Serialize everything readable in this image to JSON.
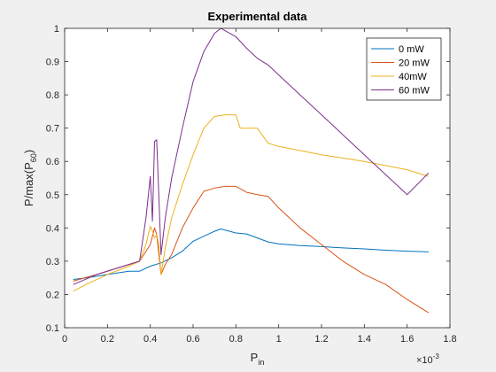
{
  "chart_data": {
    "type": "line",
    "title": "Experimental data",
    "xlabel": "P",
    "xlabel_sub": "in",
    "x_exponent_base": "×10",
    "x_exponent_power": "-3",
    "ylabel": "P/max(P",
    "ylabel_sub": "60",
    "ylabel_tail": ")",
    "xlim": [
      0,
      1.8
    ],
    "ylim": [
      0.1,
      1.0
    ],
    "x_ticks": [
      0,
      0.2,
      0.4,
      0.6,
      0.8,
      1,
      1.2,
      1.4,
      1.6,
      1.8
    ],
    "x_tick_labels": [
      "0",
      "0.2",
      "0.4",
      "0.6",
      "0.8",
      "1",
      "1.2",
      "1.4",
      "1.6",
      "1.8"
    ],
    "y_ticks": [
      0.1,
      0.2,
      0.3,
      0.4,
      0.5,
      0.6,
      0.7,
      0.8,
      0.9,
      1.0
    ],
    "y_tick_labels": [
      "0.1",
      "0.2",
      "0.3",
      "0.4",
      "0.5",
      "0.6",
      "0.7",
      "0.8",
      "0.9",
      "1"
    ],
    "grid": false,
    "legend_position": "top-right",
    "series": [
      {
        "name": "0 mW",
        "color": "#0072BD",
        "points": [
          [
            0.04,
            0.245
          ],
          [
            0.1,
            0.25
          ],
          [
            0.2,
            0.26
          ],
          [
            0.3,
            0.27
          ],
          [
            0.35,
            0.27
          ],
          [
            0.4,
            0.285
          ],
          [
            0.45,
            0.295
          ],
          [
            0.5,
            0.31
          ],
          [
            0.55,
            0.33
          ],
          [
            0.6,
            0.36
          ],
          [
            0.65,
            0.375
          ],
          [
            0.7,
            0.39
          ],
          [
            0.73,
            0.397
          ],
          [
            0.8,
            0.385
          ],
          [
            0.85,
            0.382
          ],
          [
            0.9,
            0.37
          ],
          [
            0.95,
            0.358
          ],
          [
            1.0,
            0.352
          ],
          [
            1.1,
            0.347
          ],
          [
            1.2,
            0.344
          ],
          [
            1.3,
            0.34
          ],
          [
            1.4,
            0.337
          ],
          [
            1.5,
            0.333
          ],
          [
            1.6,
            0.33
          ],
          [
            1.7,
            0.328
          ]
        ]
      },
      {
        "name": "20 mW",
        "color": "#D95319",
        "points": [
          [
            0.04,
            0.24
          ],
          [
            0.15,
            0.26
          ],
          [
            0.25,
            0.28
          ],
          [
            0.35,
            0.3
          ],
          [
            0.4,
            0.35
          ],
          [
            0.42,
            0.4
          ],
          [
            0.43,
            0.38
          ],
          [
            0.45,
            0.26
          ],
          [
            0.47,
            0.29
          ],
          [
            0.5,
            0.32
          ],
          [
            0.55,
            0.4
          ],
          [
            0.6,
            0.46
          ],
          [
            0.65,
            0.51
          ],
          [
            0.7,
            0.52
          ],
          [
            0.75,
            0.525
          ],
          [
            0.8,
            0.525
          ],
          [
            0.85,
            0.507
          ],
          [
            0.9,
            0.5
          ],
          [
            0.95,
            0.495
          ],
          [
            1.0,
            0.46
          ],
          [
            1.1,
            0.4
          ],
          [
            1.2,
            0.35
          ],
          [
            1.3,
            0.3
          ],
          [
            1.4,
            0.26
          ],
          [
            1.5,
            0.23
          ],
          [
            1.6,
            0.185
          ],
          [
            1.7,
            0.145
          ]
        ]
      },
      {
        "name": "40mW",
        "color": "#EDB120",
        "points": [
          [
            0.04,
            0.21
          ],
          [
            0.1,
            0.23
          ],
          [
            0.2,
            0.26
          ],
          [
            0.3,
            0.285
          ],
          [
            0.35,
            0.3
          ],
          [
            0.38,
            0.35
          ],
          [
            0.4,
            0.405
          ],
          [
            0.41,
            0.39
          ],
          [
            0.42,
            0.37
          ],
          [
            0.43,
            0.38
          ],
          [
            0.44,
            0.35
          ],
          [
            0.45,
            0.26
          ],
          [
            0.47,
            0.34
          ],
          [
            0.5,
            0.43
          ],
          [
            0.55,
            0.53
          ],
          [
            0.6,
            0.62
          ],
          [
            0.65,
            0.7
          ],
          [
            0.7,
            0.735
          ],
          [
            0.75,
            0.74
          ],
          [
            0.8,
            0.74
          ],
          [
            0.82,
            0.7
          ],
          [
            0.9,
            0.7
          ],
          [
            0.95,
            0.655
          ],
          [
            1.0,
            0.645
          ],
          [
            1.2,
            0.62
          ],
          [
            1.4,
            0.6
          ],
          [
            1.6,
            0.575
          ],
          [
            1.7,
            0.555
          ]
        ]
      },
      {
        "name": "60 mW",
        "color": "#7E2F8E",
        "points": [
          [
            0.04,
            0.23
          ],
          [
            0.15,
            0.26
          ],
          [
            0.25,
            0.28
          ],
          [
            0.35,
            0.3
          ],
          [
            0.38,
            0.43
          ],
          [
            0.4,
            0.555
          ],
          [
            0.41,
            0.42
          ],
          [
            0.42,
            0.66
          ],
          [
            0.43,
            0.665
          ],
          [
            0.44,
            0.5
          ],
          [
            0.45,
            0.32
          ],
          [
            0.47,
            0.43
          ],
          [
            0.5,
            0.55
          ],
          [
            0.55,
            0.7
          ],
          [
            0.6,
            0.84
          ],
          [
            0.65,
            0.93
          ],
          [
            0.7,
            0.985
          ],
          [
            0.73,
            1.0
          ],
          [
            0.8,
            0.975
          ],
          [
            0.85,
            0.94
          ],
          [
            0.9,
            0.91
          ],
          [
            0.95,
            0.89
          ],
          [
            1.0,
            0.86
          ],
          [
            1.1,
            0.8
          ],
          [
            1.2,
            0.74
          ],
          [
            1.3,
            0.68
          ],
          [
            1.4,
            0.62
          ],
          [
            1.5,
            0.56
          ],
          [
            1.6,
            0.5
          ],
          [
            1.7,
            0.565
          ]
        ]
      }
    ]
  }
}
